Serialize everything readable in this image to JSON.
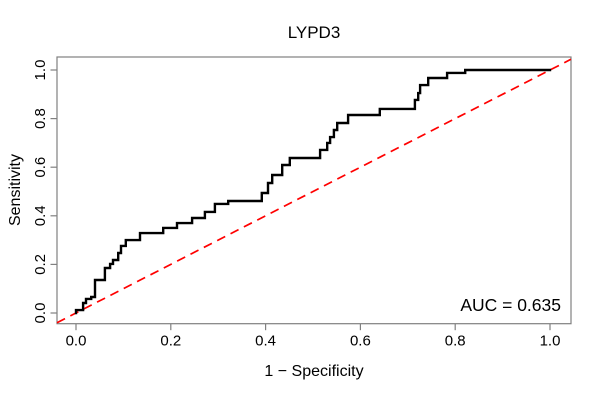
{
  "chart_data": {
    "type": "line",
    "subtype": "roc-step-curve",
    "title": "LYPD3",
    "xlabel": "1 − Specificity",
    "ylabel": "Sensitivity",
    "annotation": "AUC = 0.635",
    "auc": 0.635,
    "xlim": [
      0,
      1
    ],
    "ylim": [
      0,
      1
    ],
    "grid": "off",
    "legend": "none",
    "x_ticks": [
      0.0,
      0.2,
      0.4,
      0.6,
      0.8,
      1.0
    ],
    "x_tick_labels": [
      "0.0",
      "0.2",
      "0.4",
      "0.6",
      "0.8",
      "1.0"
    ],
    "y_ticks": [
      0.0,
      0.2,
      0.4,
      0.6,
      0.8,
      1.0
    ],
    "y_tick_labels": [
      "0.0",
      "0.2",
      "0.4",
      "0.6",
      "0.8",
      "1.0"
    ],
    "colors": {
      "curve": "#000000",
      "diagonal": "#ff0000",
      "box": "#808080",
      "text": "#000000",
      "background": "#ffffff"
    },
    "series": [
      {
        "name": "ROC curve",
        "style": "solid-step",
        "points": [
          [
            0.0,
            0.0
          ],
          [
            0.0,
            0.012
          ],
          [
            0.015,
            0.012
          ],
          [
            0.015,
            0.041
          ],
          [
            0.021,
            0.041
          ],
          [
            0.021,
            0.058
          ],
          [
            0.032,
            0.058
          ],
          [
            0.032,
            0.066
          ],
          [
            0.04,
            0.066
          ],
          [
            0.04,
            0.136
          ],
          [
            0.061,
            0.136
          ],
          [
            0.061,
            0.185
          ],
          [
            0.072,
            0.185
          ],
          [
            0.072,
            0.202
          ],
          [
            0.078,
            0.202
          ],
          [
            0.078,
            0.218
          ],
          [
            0.089,
            0.218
          ],
          [
            0.089,
            0.247
          ],
          [
            0.095,
            0.247
          ],
          [
            0.095,
            0.276
          ],
          [
            0.105,
            0.276
          ],
          [
            0.105,
            0.3
          ],
          [
            0.135,
            0.3
          ],
          [
            0.135,
            0.329
          ],
          [
            0.184,
            0.329
          ],
          [
            0.184,
            0.35
          ],
          [
            0.213,
            0.35
          ],
          [
            0.213,
            0.37
          ],
          [
            0.245,
            0.37
          ],
          [
            0.245,
            0.391
          ],
          [
            0.272,
            0.391
          ],
          [
            0.272,
            0.416
          ],
          [
            0.293,
            0.416
          ],
          [
            0.293,
            0.449
          ],
          [
            0.321,
            0.449
          ],
          [
            0.321,
            0.461
          ],
          [
            0.392,
            0.461
          ],
          [
            0.392,
            0.494
          ],
          [
            0.405,
            0.494
          ],
          [
            0.405,
            0.535
          ],
          [
            0.414,
            0.535
          ],
          [
            0.414,
            0.568
          ],
          [
            0.435,
            0.568
          ],
          [
            0.435,
            0.609
          ],
          [
            0.451,
            0.609
          ],
          [
            0.451,
            0.638
          ],
          [
            0.515,
            0.638
          ],
          [
            0.515,
            0.671
          ],
          [
            0.53,
            0.671
          ],
          [
            0.53,
            0.7
          ],
          [
            0.536,
            0.7
          ],
          [
            0.536,
            0.724
          ],
          [
            0.544,
            0.724
          ],
          [
            0.544,
            0.753
          ],
          [
            0.551,
            0.753
          ],
          [
            0.551,
            0.782
          ],
          [
            0.574,
            0.782
          ],
          [
            0.574,
            0.815
          ],
          [
            0.641,
            0.815
          ],
          [
            0.641,
            0.84
          ],
          [
            0.715,
            0.84
          ],
          [
            0.715,
            0.877
          ],
          [
            0.722,
            0.877
          ],
          [
            0.722,
            0.905
          ],
          [
            0.726,
            0.905
          ],
          [
            0.726,
            0.938
          ],
          [
            0.743,
            0.938
          ],
          [
            0.743,
            0.967
          ],
          [
            0.783,
            0.967
          ],
          [
            0.783,
            0.988
          ],
          [
            0.821,
            0.988
          ],
          [
            0.821,
            1.0
          ],
          [
            1.0,
            1.0
          ]
        ]
      },
      {
        "name": "chance line",
        "style": "dashed-diagonal",
        "from": [
          0,
          0
        ],
        "to": [
          1,
          1
        ]
      }
    ]
  }
}
